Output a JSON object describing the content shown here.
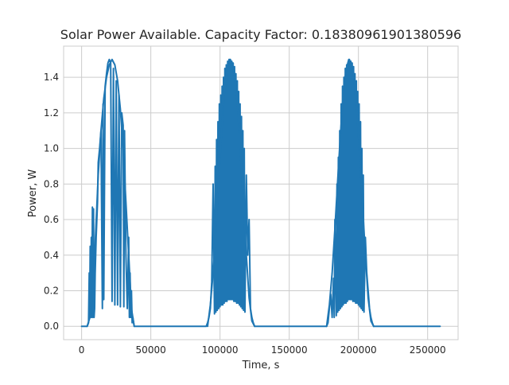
{
  "chart_data": {
    "type": "line",
    "title": "Solar Power Available. Capacity Factor: 0.18380961901380596",
    "xlabel": "Time, s",
    "ylabel": "Power, W",
    "xlim": [
      -13000,
      272000
    ],
    "ylim": [
      -0.075,
      1.575
    ],
    "xticks": [
      0,
      50000,
      100000,
      150000,
      200000,
      250000
    ],
    "xtick_labels": [
      "0",
      "50000",
      "100000",
      "150000",
      "200000",
      "250000"
    ],
    "yticks": [
      0.0,
      0.2,
      0.4,
      0.6,
      0.8,
      1.0,
      1.2,
      1.4
    ],
    "ytick_labels": [
      "0.0",
      "0.2",
      "0.4",
      "0.6",
      "0.8",
      "1.0",
      "1.2",
      "1.4"
    ],
    "grid": true,
    "line_color": "#1f77b4",
    "series": [
      {
        "x": [
          0,
          4000,
          5000,
          5500,
          5800,
          6200,
          6600,
          7000,
          7400,
          7800,
          8200,
          8600,
          9000,
          9400,
          9800,
          10500,
          11500,
          12000,
          13000,
          14000,
          15000,
          15500,
          16000,
          17000,
          18000,
          19000,
          20000,
          21000,
          22000,
          23000,
          24000,
          25000,
          26000,
          27000,
          28000,
          29000,
          30000,
          30500,
          31000,
          32000,
          33000,
          34000,
          34500,
          35000,
          35500,
          36000,
          36500,
          37000,
          38000,
          50000,
          60000,
          70000,
          80000,
          90000,
          91000,
          92000,
          93000,
          94000,
          95000,
          96000,
          96500,
          97000,
          97500,
          98000,
          98500,
          99000,
          99500,
          100000,
          100500,
          101000,
          101500,
          102000,
          102500,
          103000,
          103500,
          104000,
          104500,
          105000,
          105500,
          106000,
          106500,
          107000,
          107500,
          108000,
          108500,
          109000,
          109500,
          110000,
          110500,
          111000,
          111500,
          112000,
          112500,
          113000,
          113500,
          114000,
          114500,
          115000,
          115500,
          116000,
          116500,
          117000,
          117500,
          118000,
          119000,
          120000,
          121000,
          122000,
          123000,
          124000,
          125000,
          140000,
          160000,
          177000,
          178000,
          179000,
          180000,
          181000,
          182000,
          182500,
          183000,
          184000,
          184500,
          185000,
          185500,
          186000,
          186500,
          187000,
          187500,
          188000,
          188500,
          189000,
          189500,
          190000,
          190500,
          191000,
          191500,
          192000,
          192500,
          193000,
          193500,
          194000,
          194500,
          195000,
          195500,
          196000,
          196500,
          197000,
          197500,
          198000,
          198500,
          199000,
          199500,
          200000,
          200500,
          201000,
          201500,
          202000,
          202500,
          203000,
          203500,
          204000,
          205000,
          206000,
          207000,
          208000,
          209000,
          210000,
          211000,
          215000,
          230000,
          245000,
          259000
        ],
        "y": [
          0.0,
          0.0,
          0.02,
          0.3,
          0.05,
          0.45,
          0.05,
          0.5,
          0.05,
          0.67,
          0.05,
          0.66,
          0.05,
          0.1,
          0.3,
          0.5,
          0.7,
          0.92,
          1.0,
          1.1,
          0.1,
          1.25,
          0.15,
          1.35,
          1.42,
          1.48,
          1.5,
          1.48,
          0.14,
          1.45,
          0.12,
          1.38,
          0.12,
          1.3,
          0.11,
          1.2,
          1.13,
          0.11,
          1.1,
          0.4,
          0.1,
          0.5,
          0.05,
          0.3,
          0.05,
          0.2,
          0.02,
          0.05,
          0.0,
          0.0,
          0.0,
          0.0,
          0.0,
          0.0,
          0.02,
          0.05,
          0.1,
          0.25,
          0.8,
          0.07,
          0.9,
          0.08,
          1.05,
          0.09,
          1.15,
          0.1,
          1.25,
          0.11,
          1.3,
          0.12,
          1.35,
          0.12,
          1.4,
          0.13,
          1.45,
          0.14,
          1.47,
          0.14,
          1.49,
          0.15,
          1.5,
          0.15,
          1.5,
          0.15,
          1.49,
          0.15,
          1.48,
          0.14,
          1.46,
          0.14,
          1.42,
          0.13,
          1.38,
          0.13,
          1.32,
          0.12,
          1.25,
          0.11,
          1.18,
          0.1,
          1.1,
          0.09,
          1.0,
          0.08,
          0.85,
          0.4,
          0.6,
          0.1,
          0.05,
          0.02,
          0.0,
          0.0,
          0.0,
          0.0,
          0.02,
          0.1,
          0.18,
          0.05,
          0.27,
          0.05,
          0.6,
          0.06,
          0.8,
          0.08,
          0.95,
          0.09,
          1.1,
          0.1,
          1.25,
          0.11,
          1.35,
          0.12,
          1.4,
          0.13,
          1.45,
          0.13,
          1.47,
          0.14,
          1.48,
          0.15,
          1.5,
          0.15,
          1.49,
          0.15,
          1.48,
          0.14,
          1.46,
          0.14,
          1.42,
          0.13,
          1.38,
          0.13,
          1.32,
          0.12,
          1.25,
          0.11,
          1.15,
          0.1,
          1.0,
          0.09,
          0.85,
          0.08,
          0.5,
          0.3,
          0.2,
          0.1,
          0.05,
          0.02,
          0.0,
          0.0,
          0.0,
          0.0,
          0.0
        ]
      },
      {
        "x": [
          4000,
          6000,
          8000,
          10000,
          12000,
          14000,
          16000,
          18000,
          20000,
          22000,
          24000,
          26000,
          28000,
          30000,
          32000,
          34000,
          36000,
          38000
        ],
        "y": [
          0.0,
          0.05,
          0.2,
          0.5,
          0.85,
          1.1,
          1.28,
          1.4,
          1.47,
          1.5,
          1.47,
          1.38,
          1.22,
          1.0,
          0.7,
          0.4,
          0.1,
          0.0
        ]
      },
      {
        "x": [
          91000,
          93000,
          95000,
          97000,
          99000,
          101000,
          103000,
          105000,
          107000,
          109000,
          111000,
          113000,
          115000,
          117000,
          119000,
          121000,
          123000,
          125000
        ],
        "y": [
          0.0,
          0.12,
          0.3,
          0.55,
          0.82,
          1.08,
          1.3,
          1.44,
          1.5,
          1.48,
          1.38,
          1.2,
          0.95,
          0.68,
          0.4,
          0.16,
          0.03,
          0.0
        ]
      },
      {
        "x": [
          177000,
          179000,
          181000,
          183000,
          185000,
          187000,
          189000,
          191000,
          193000,
          195000,
          197000,
          199000,
          201000,
          203000,
          205000,
          207000,
          209000,
          211000
        ],
        "y": [
          0.0,
          0.12,
          0.3,
          0.55,
          0.82,
          1.08,
          1.3,
          1.44,
          1.5,
          1.48,
          1.38,
          1.2,
          0.95,
          0.68,
          0.4,
          0.16,
          0.03,
          0.0
        ]
      }
    ]
  }
}
